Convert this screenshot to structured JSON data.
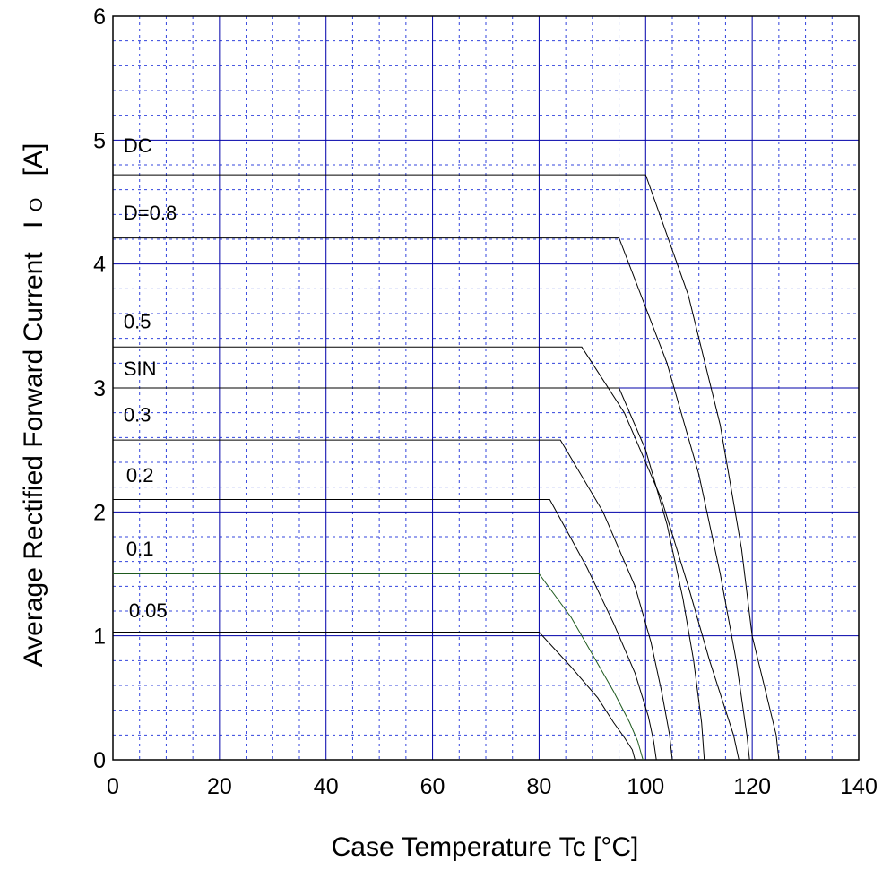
{
  "chart_data": {
    "type": "line",
    "xlabel": "Case Temperature  Tc  [°C]",
    "ylabel_main": "Average Rectified Forward Current",
    "ylabel_symbol": "I",
    "ylabel_subscript": "O",
    "ylabel_unit": "[A]",
    "xlim": [
      0,
      140
    ],
    "ylim": [
      0,
      6
    ],
    "x_ticks": [
      "0",
      "20",
      "40",
      "60",
      "80",
      "100",
      "120",
      "140"
    ],
    "y_ticks": [
      "0",
      "1",
      "2",
      "3",
      "4",
      "5",
      "6"
    ],
    "grid": true,
    "major_grid_color": "#0000aa",
    "minor_grid_color": "#3344dd",
    "series": [
      {
        "name": "DC",
        "color": "#000000",
        "points": [
          [
            0,
            4.72
          ],
          [
            100,
            4.72
          ],
          [
            108,
            3.75
          ],
          [
            114,
            2.7
          ],
          [
            118,
            1.7
          ],
          [
            120,
            1.0
          ],
          [
            124.5,
            0.2
          ],
          [
            125,
            0
          ]
        ]
      },
      {
        "name": "D=0.8",
        "color": "#000000",
        "points": [
          [
            0,
            4.21
          ],
          [
            95,
            4.21
          ],
          [
            104,
            3.2
          ],
          [
            110,
            2.3
          ],
          [
            114,
            1.5
          ],
          [
            117,
            0.8
          ],
          [
            119,
            0.2
          ],
          [
            119.5,
            0
          ]
        ]
      },
      {
        "name": "0.5",
        "color": "#000000",
        "points": [
          [
            0,
            3.33
          ],
          [
            88,
            3.33
          ],
          [
            96,
            2.8
          ],
          [
            103,
            2.1
          ],
          [
            108,
            1.4
          ],
          [
            112,
            0.8
          ],
          [
            116.5,
            0.2
          ],
          [
            117.5,
            0
          ]
        ]
      },
      {
        "name": "SIN",
        "color": "#000000",
        "points": [
          [
            0,
            3.0
          ],
          [
            95,
            3.0
          ],
          [
            100,
            2.5
          ],
          [
            104,
            1.9
          ],
          [
            107,
            1.3
          ],
          [
            109,
            0.8
          ],
          [
            110.5,
            0.3
          ],
          [
            111,
            0
          ]
        ]
      },
      {
        "name": "0.3",
        "color": "#000000",
        "points": [
          [
            0,
            2.58
          ],
          [
            84,
            2.58
          ],
          [
            92,
            2.0
          ],
          [
            98,
            1.4
          ],
          [
            101,
            0.95
          ],
          [
            103,
            0.55
          ],
          [
            104.5,
            0.2
          ],
          [
            105,
            0
          ]
        ]
      },
      {
        "name": "0.2",
        "color": "#000000",
        "points": [
          [
            0,
            2.1
          ],
          [
            82,
            2.1
          ],
          [
            89,
            1.55
          ],
          [
            94,
            1.1
          ],
          [
            98,
            0.7
          ],
          [
            100.5,
            0.35
          ],
          [
            101.5,
            0.15
          ],
          [
            102,
            0
          ]
        ]
      },
      {
        "name": "0.1",
        "color": "#1e5a1e",
        "points": [
          [
            0,
            1.5
          ],
          [
            80,
            1.5
          ],
          [
            86,
            1.15
          ],
          [
            90,
            0.85
          ],
          [
            94,
            0.55
          ],
          [
            97,
            0.3
          ],
          [
            98.5,
            0.15
          ],
          [
            99.5,
            0
          ]
        ]
      },
      {
        "name": "0.05",
        "color": "#000000",
        "points": [
          [
            0,
            1.03
          ],
          [
            80,
            1.03
          ],
          [
            86,
            0.75
          ],
          [
            91,
            0.5
          ],
          [
            94,
            0.3
          ],
          [
            96,
            0.18
          ],
          [
            97.5,
            0.08
          ],
          [
            98,
            0
          ]
        ]
      }
    ],
    "series_label_positions": [
      {
        "name": "DC",
        "x": 2,
        "y": 4.9
      },
      {
        "name": "D=0.8",
        "x": 2,
        "y": 4.36
      },
      {
        "name": "0.5",
        "x": 2,
        "y": 3.48
      },
      {
        "name": "SIN",
        "x": 2,
        "y": 3.1
      },
      {
        "name": "0.3",
        "x": 2,
        "y": 2.73
      },
      {
        "name": "0.2",
        "x": 2.5,
        "y": 2.24
      },
      {
        "name": "0.1",
        "x": 2.5,
        "y": 1.65
      },
      {
        "name": "0.05",
        "x": 3,
        "y": 1.15
      }
    ]
  }
}
